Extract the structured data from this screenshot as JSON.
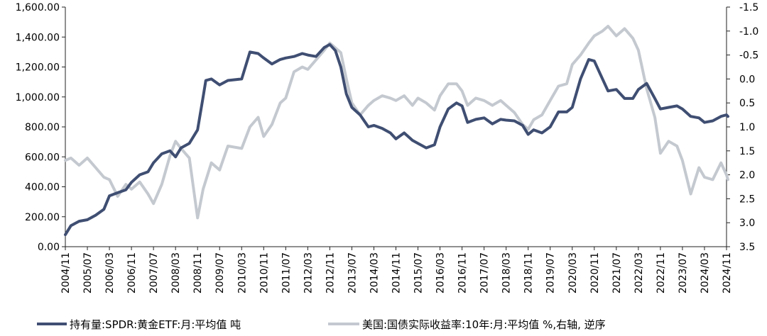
{
  "chart_data": {
    "type": "line",
    "title": "",
    "xlabel": "",
    "ylabel": "",
    "ylim": [
      0,
      1600
    ],
    "y2lim": [
      3.5,
      -1.5
    ],
    "y2_inverted": true,
    "grid": false,
    "legend_position": "bottom",
    "colors": {
      "gold": "#3f4e72",
      "yield": "#c4c9d0"
    },
    "yticks": [
      {
        "v": 0,
        "label": "0.00"
      },
      {
        "v": 200,
        "label": "200.00"
      },
      {
        "v": 400,
        "label": "400.00"
      },
      {
        "v": 600,
        "label": "600.00"
      },
      {
        "v": 800,
        "label": "800.00"
      },
      {
        "v": 1000,
        "label": "1,000.00"
      },
      {
        "v": 1200,
        "label": "1,200.00"
      },
      {
        "v": 1400,
        "label": "1,400.00"
      },
      {
        "v": 1600,
        "label": "1,600.00"
      }
    ],
    "y2ticks": [
      {
        "v": -1.5,
        "label": "-1.5"
      },
      {
        "v": -1.0,
        "label": "-1.0"
      },
      {
        "v": -0.5,
        "label": "-0.5"
      },
      {
        "v": 0.0,
        "label": "0.0"
      },
      {
        "v": 0.5,
        "label": "0.5"
      },
      {
        "v": 1.0,
        "label": "1.0"
      },
      {
        "v": 1.5,
        "label": "1.5"
      },
      {
        "v": 2.0,
        "label": "2.0"
      },
      {
        "v": 2.5,
        "label": "2.5"
      },
      {
        "v": 3.0,
        "label": "3.0"
      },
      {
        "v": 3.5,
        "label": "3.5"
      }
    ],
    "xticks": [
      "2004/11",
      "2005/07",
      "2006/03",
      "2006/11",
      "2007/07",
      "2008/03",
      "2008/11",
      "2009/07",
      "2010/03",
      "2010/11",
      "2011/07",
      "2012/03",
      "2012/11",
      "2013/07",
      "2014/03",
      "2014/11",
      "2015/07",
      "2016/03",
      "2016/11",
      "2017/07",
      "2018/03",
      "2018/11",
      "2019/07",
      "2020/03",
      "2020/11",
      "2021/07",
      "2022/03",
      "2022/11",
      "2023/07",
      "2024/03",
      "2024/11"
    ],
    "series": [
      {
        "name": "持有量:SPDR:黄金ETF:月:平均值 吨",
        "axis": "left",
        "points": [
          [
            "2004/11",
            80
          ],
          [
            "2005/01",
            140
          ],
          [
            "2005/04",
            170
          ],
          [
            "2005/07",
            180
          ],
          [
            "2005/10",
            210
          ],
          [
            "2006/01",
            250
          ],
          [
            "2006/03",
            340
          ],
          [
            "2006/06",
            360
          ],
          [
            "2006/09",
            380
          ],
          [
            "2006/11",
            430
          ],
          [
            "2007/02",
            480
          ],
          [
            "2007/05",
            500
          ],
          [
            "2007/07",
            560
          ],
          [
            "2007/10",
            620
          ],
          [
            "2008/01",
            640
          ],
          [
            "2008/03",
            600
          ],
          [
            "2008/05",
            660
          ],
          [
            "2008/08",
            690
          ],
          [
            "2008/11",
            780
          ],
          [
            "2009/01",
            1000
          ],
          [
            "2009/02",
            1110
          ],
          [
            "2009/04",
            1120
          ],
          [
            "2009/07",
            1080
          ],
          [
            "2009/10",
            1110
          ],
          [
            "2010/03",
            1120
          ],
          [
            "2010/06",
            1300
          ],
          [
            "2010/09",
            1290
          ],
          [
            "2010/11",
            1260
          ],
          [
            "2011/02",
            1220
          ],
          [
            "2011/05",
            1250
          ],
          [
            "2011/07",
            1260
          ],
          [
            "2011/10",
            1270
          ],
          [
            "2012/01",
            1290
          ],
          [
            "2012/03",
            1280
          ],
          [
            "2012/06",
            1270
          ],
          [
            "2012/09",
            1330
          ],
          [
            "2012/11",
            1350
          ],
          [
            "2013/01",
            1310
          ],
          [
            "2013/03",
            1200
          ],
          [
            "2013/05",
            1020
          ],
          [
            "2013/07",
            930
          ],
          [
            "2013/10",
            880
          ],
          [
            "2014/01",
            800
          ],
          [
            "2014/03",
            810
          ],
          [
            "2014/06",
            790
          ],
          [
            "2014/09",
            760
          ],
          [
            "2014/11",
            720
          ],
          [
            "2015/02",
            760
          ],
          [
            "2015/05",
            710
          ],
          [
            "2015/07",
            690
          ],
          [
            "2015/10",
            660
          ],
          [
            "2016/01",
            680
          ],
          [
            "2016/03",
            800
          ],
          [
            "2016/06",
            920
          ],
          [
            "2016/09",
            960
          ],
          [
            "2016/11",
            940
          ],
          [
            "2017/01",
            830
          ],
          [
            "2017/04",
            850
          ],
          [
            "2017/07",
            860
          ],
          [
            "2017/10",
            820
          ],
          [
            "2018/01",
            850
          ],
          [
            "2018/03",
            845
          ],
          [
            "2018/06",
            840
          ],
          [
            "2018/09",
            810
          ],
          [
            "2018/11",
            750
          ],
          [
            "2019/01",
            780
          ],
          [
            "2019/04",
            760
          ],
          [
            "2019/07",
            800
          ],
          [
            "2019/10",
            900
          ],
          [
            "2020/01",
            900
          ],
          [
            "2020/03",
            930
          ],
          [
            "2020/06",
            1120
          ],
          [
            "2020/09",
            1250
          ],
          [
            "2020/11",
            1240
          ],
          [
            "2021/02",
            1120
          ],
          [
            "2021/04",
            1040
          ],
          [
            "2021/07",
            1050
          ],
          [
            "2021/10",
            990
          ],
          [
            "2022/01",
            990
          ],
          [
            "2022/03",
            1050
          ],
          [
            "2022/06",
            1090
          ],
          [
            "2022/09",
            990
          ],
          [
            "2022/11",
            920
          ],
          [
            "2023/02",
            930
          ],
          [
            "2023/05",
            940
          ],
          [
            "2023/07",
            920
          ],
          [
            "2023/10",
            870
          ],
          [
            "2024/01",
            860
          ],
          [
            "2024/03",
            830
          ],
          [
            "2024/06",
            840
          ],
          [
            "2024/09",
            870
          ],
          [
            "2024/11",
            880
          ],
          [
            "2025/01",
            870
          ]
        ]
      },
      {
        "name": "美国:国债实际收益率:10年:月:平均值 %,右轴, 逆序",
        "axis": "right",
        "points": [
          [
            "2004/11",
            1.7
          ],
          [
            "2005/01",
            1.65
          ],
          [
            "2005/04",
            1.8
          ],
          [
            "2005/07",
            1.65
          ],
          [
            "2005/10",
            1.85
          ],
          [
            "2006/01",
            2.05
          ],
          [
            "2006/03",
            2.1
          ],
          [
            "2006/06",
            2.45
          ],
          [
            "2006/09",
            2.2
          ],
          [
            "2006/11",
            2.3
          ],
          [
            "2007/02",
            2.15
          ],
          [
            "2007/05",
            2.4
          ],
          [
            "2007/07",
            2.6
          ],
          [
            "2007/10",
            2.2
          ],
          [
            "2008/01",
            1.6
          ],
          [
            "2008/03",
            1.3
          ],
          [
            "2008/05",
            1.45
          ],
          [
            "2008/08",
            1.65
          ],
          [
            "2008/11",
            2.9
          ],
          [
            "2009/01",
            2.3
          ],
          [
            "2009/04",
            1.75
          ],
          [
            "2009/07",
            1.9
          ],
          [
            "2009/10",
            1.4
          ],
          [
            "2010/03",
            1.45
          ],
          [
            "2010/06",
            1.0
          ],
          [
            "2010/09",
            0.8
          ],
          [
            "2010/11",
            1.2
          ],
          [
            "2011/02",
            0.95
          ],
          [
            "2011/05",
            0.5
          ],
          [
            "2011/07",
            0.4
          ],
          [
            "2011/10",
            -0.15
          ],
          [
            "2012/01",
            -0.25
          ],
          [
            "2012/03",
            -0.2
          ],
          [
            "2012/06",
            -0.4
          ],
          [
            "2012/09",
            -0.6
          ],
          [
            "2012/11",
            -0.75
          ],
          [
            "2013/01",
            -0.65
          ],
          [
            "2013/03",
            -0.55
          ],
          [
            "2013/05",
            0.0
          ],
          [
            "2013/07",
            0.5
          ],
          [
            "2013/10",
            0.75
          ],
          [
            "2014/01",
            0.55
          ],
          [
            "2014/03",
            0.45
          ],
          [
            "2014/06",
            0.35
          ],
          [
            "2014/09",
            0.4
          ],
          [
            "2014/11",
            0.45
          ],
          [
            "2015/02",
            0.35
          ],
          [
            "2015/05",
            0.55
          ],
          [
            "2015/07",
            0.4
          ],
          [
            "2015/10",
            0.5
          ],
          [
            "2016/01",
            0.65
          ],
          [
            "2016/03",
            0.35
          ],
          [
            "2016/06",
            0.1
          ],
          [
            "2016/09",
            0.1
          ],
          [
            "2016/11",
            0.25
          ],
          [
            "2017/01",
            0.55
          ],
          [
            "2017/04",
            0.4
          ],
          [
            "2017/07",
            0.45
          ],
          [
            "2017/10",
            0.55
          ],
          [
            "2018/01",
            0.45
          ],
          [
            "2018/03",
            0.55
          ],
          [
            "2018/06",
            0.7
          ],
          [
            "2018/09",
            0.95
          ],
          [
            "2018/11",
            1.05
          ],
          [
            "2019/01",
            0.85
          ],
          [
            "2019/04",
            0.75
          ],
          [
            "2019/07",
            0.45
          ],
          [
            "2019/10",
            0.15
          ],
          [
            "2020/01",
            0.1
          ],
          [
            "2020/03",
            -0.3
          ],
          [
            "2020/06",
            -0.5
          ],
          [
            "2020/09",
            -0.75
          ],
          [
            "2020/11",
            -0.9
          ],
          [
            "2021/02",
            -1.0
          ],
          [
            "2021/04",
            -1.1
          ],
          [
            "2021/07",
            -0.9
          ],
          [
            "2021/10",
            -1.05
          ],
          [
            "2022/01",
            -0.85
          ],
          [
            "2022/03",
            -0.6
          ],
          [
            "2022/06",
            0.2
          ],
          [
            "2022/09",
            0.8
          ],
          [
            "2022/11",
            1.55
          ],
          [
            "2023/02",
            1.3
          ],
          [
            "2023/05",
            1.4
          ],
          [
            "2023/07",
            1.7
          ],
          [
            "2023/10",
            2.4
          ],
          [
            "2024/01",
            1.85
          ],
          [
            "2024/03",
            2.05
          ],
          [
            "2024/06",
            2.1
          ],
          [
            "2024/09",
            1.75
          ],
          [
            "2024/11",
            2.0
          ],
          [
            "2025/01",
            2.1
          ]
        ]
      }
    ]
  },
  "legend": {
    "gold_label": "持有量:SPDR:黄金ETF:月:平均值 吨",
    "yield_label": "美国:国债实际收益率:10年:月:平均值 %,右轴, 逆序"
  }
}
